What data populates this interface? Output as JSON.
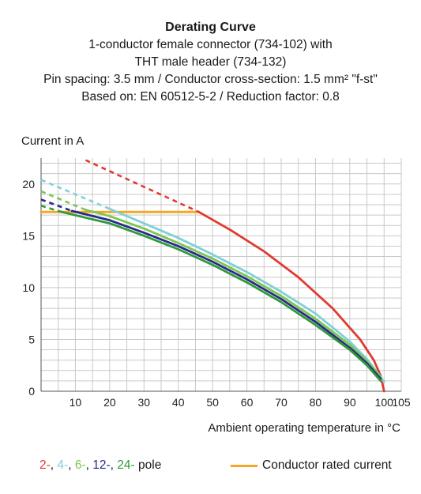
{
  "chart_data": {
    "type": "line",
    "title": "Derating Curve",
    "subtitle": [
      "1-conductor female connector (734-102) with",
      "THT male header (734-132)",
      "Pin spacing: 3.5 mm / Conductor cross-section: 1.5 mm² \"f-st\"",
      "Based on: EN 60512-5-2 / Reduction factor: 0.8"
    ],
    "ylabel": "Current in A",
    "xlabel": "Ambient operating temperature in °C",
    "xlim": [
      0,
      105
    ],
    "ylim": [
      0,
      22.5
    ],
    "xticks": [
      10,
      20,
      30,
      40,
      50,
      60,
      70,
      80,
      90,
      100,
      105
    ],
    "yticks": [
      0,
      5,
      10,
      15,
      20
    ],
    "grid": true,
    "legend": {
      "poles_prefix_items": [
        {
          "text": "2-",
          "color": "#e03a2e"
        },
        {
          "text": "4-",
          "color": "#7fd0d8"
        },
        {
          "text": "6-",
          "color": "#7cc651"
        },
        {
          "text": "12-",
          "color": "#2a2a8c"
        },
        {
          "text": "24-",
          "color": "#2f9a3a"
        }
      ],
      "poles_suffix": "pole",
      "rated_label": "Conductor rated current",
      "rated_color": "#f5a623"
    },
    "series": [
      {
        "color": "#f5a623",
        "x": [
          0,
          46
        ],
        "y": [
          17.3,
          17.3
        ]
      },
      {
        "color": "#e03a2e",
        "dashed_x": [
          13,
          46
        ],
        "dashed_y": [
          22.3,
          17.3
        ],
        "x": [
          46,
          55,
          65,
          75,
          85,
          93,
          97,
          99,
          100
        ],
        "y": [
          17.3,
          15.6,
          13.5,
          11.0,
          8.0,
          5.0,
          3.0,
          1.5,
          0
        ]
      },
      {
        "color": "#7fd0d8",
        "dashed_x": [
          0,
          20
        ],
        "dashed_y": [
          20.4,
          17.6
        ],
        "x": [
          20,
          30,
          40,
          50,
          60,
          70,
          80,
          90,
          95,
          99,
          100
        ],
        "y": [
          17.6,
          16.2,
          14.8,
          13.2,
          11.5,
          9.6,
          7.5,
          4.8,
          3.1,
          1.4,
          0.9
        ]
      },
      {
        "color": "#7cc651",
        "dashed_x": [
          0,
          13
        ],
        "dashed_y": [
          19.3,
          17.5
        ],
        "x": [
          13,
          20,
          30,
          40,
          50,
          60,
          70,
          80,
          90,
          95,
          99
        ],
        "y": [
          17.5,
          16.9,
          15.7,
          14.3,
          12.8,
          11.1,
          9.2,
          7.0,
          4.5,
          2.9,
          1.4
        ]
      },
      {
        "color": "#2a2a8c",
        "dashed_x": [
          0,
          9
        ],
        "dashed_y": [
          18.5,
          17.4
        ],
        "x": [
          9,
          20,
          30,
          40,
          50,
          60,
          70,
          80,
          90,
          95,
          99
        ],
        "y": [
          17.4,
          16.5,
          15.3,
          14.0,
          12.5,
          10.8,
          8.9,
          6.7,
          4.2,
          2.7,
          1.2
        ]
      },
      {
        "color": "#2f9a3a",
        "dashed_x": [
          0,
          6
        ],
        "dashed_y": [
          17.9,
          17.3
        ],
        "x": [
          6,
          20,
          30,
          40,
          50,
          60,
          70,
          80,
          90,
          95,
          99
        ],
        "y": [
          17.3,
          16.2,
          15.0,
          13.7,
          12.2,
          10.5,
          8.6,
          6.4,
          4.0,
          2.5,
          1.0
        ]
      }
    ]
  }
}
